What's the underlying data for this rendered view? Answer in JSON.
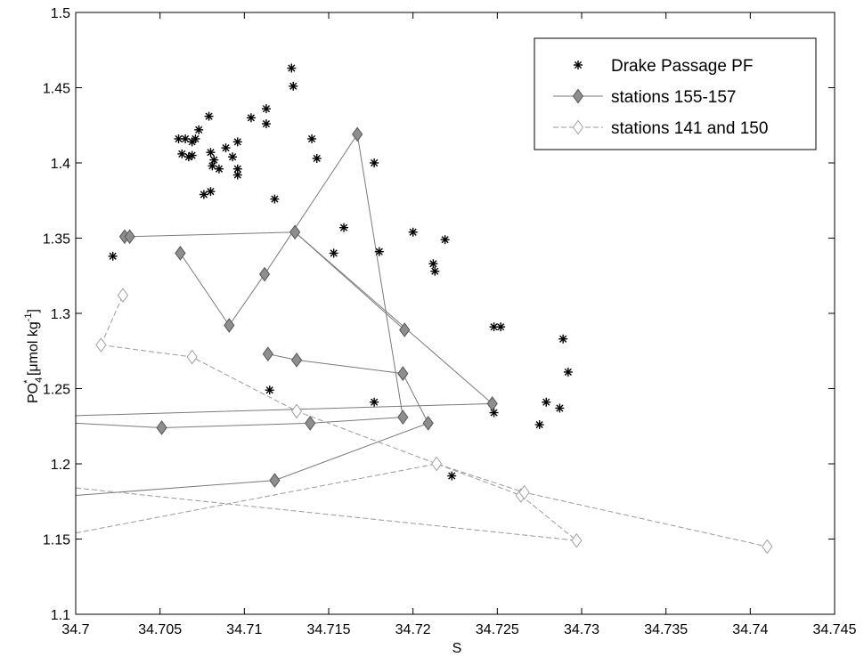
{
  "chart_data": {
    "type": "scatter",
    "xlabel": "S",
    "ylabel": {
      "base": "PO",
      "sub": "4",
      "sup": "*",
      "rest": " [μmol kg",
      "unit_sup": "-1",
      "tail": "]"
    },
    "xlim": [
      34.7,
      34.745
    ],
    "ylim": [
      1.1,
      1.5
    ],
    "xticks": [
      34.7,
      34.705,
      34.71,
      34.715,
      34.72,
      34.725,
      34.73,
      34.735,
      34.74,
      34.745
    ],
    "yticks": [
      1.1,
      1.15,
      1.2,
      1.25,
      1.3,
      1.35,
      1.4,
      1.45,
      1.5
    ],
    "xtick_labels": [
      "34.7",
      "34.705",
      "34.71",
      "34.715",
      "34.72",
      "34.725",
      "34.73",
      "34.735",
      "34.74",
      "34.745"
    ],
    "ytick_labels": [
      "1.1",
      "1.15",
      "1.2",
      "1.25",
      "1.3",
      "1.35",
      "1.4",
      "1.45",
      "1.5"
    ],
    "grid": false,
    "legend_position": "top-right",
    "series": [
      {
        "name": "Drake Passage PF",
        "marker": "star",
        "line": "none",
        "color": "#000000",
        "points": [
          [
            34.7022,
            1.338
          ],
          [
            34.7061,
            1.416
          ],
          [
            34.7065,
            1.416
          ],
          [
            34.7069,
            1.414
          ],
          [
            34.7071,
            1.416
          ],
          [
            34.7073,
            1.422
          ],
          [
            34.7063,
            1.406
          ],
          [
            34.7067,
            1.404
          ],
          [
            34.7069,
            1.405
          ],
          [
            34.7079,
            1.431
          ],
          [
            34.708,
            1.407
          ],
          [
            34.7082,
            1.402
          ],
          [
            34.7081,
            1.398
          ],
          [
            34.7085,
            1.396
          ],
          [
            34.7076,
            1.379
          ],
          [
            34.708,
            1.381
          ],
          [
            34.7089,
            1.41
          ],
          [
            34.7093,
            1.404
          ],
          [
            34.7096,
            1.414
          ],
          [
            34.7096,
            1.396
          ],
          [
            34.7096,
            1.392
          ],
          [
            34.7104,
            1.43
          ],
          [
            34.7113,
            1.436
          ],
          [
            34.7113,
            1.426
          ],
          [
            34.7118,
            1.376
          ],
          [
            34.7128,
            1.463
          ],
          [
            34.7129,
            1.451
          ],
          [
            34.714,
            1.416
          ],
          [
            34.7143,
            1.403
          ],
          [
            34.7153,
            1.34
          ],
          [
            34.7159,
            1.357
          ],
          [
            34.7177,
            1.4
          ],
          [
            34.718,
            1.341
          ],
          [
            34.72,
            1.354
          ],
          [
            34.7212,
            1.333
          ],
          [
            34.7213,
            1.328
          ],
          [
            34.7219,
            1.349
          ],
          [
            34.7115,
            1.249
          ],
          [
            34.7177,
            1.241
          ],
          [
            34.7223,
            1.192
          ],
          [
            34.7248,
            1.291
          ],
          [
            34.7252,
            1.291
          ],
          [
            34.7248,
            1.234
          ],
          [
            34.7275,
            1.226
          ],
          [
            34.7279,
            1.241
          ],
          [
            34.7287,
            1.237
          ],
          [
            34.7289,
            1.283
          ],
          [
            34.7292,
            1.261
          ]
        ]
      },
      {
        "name": "stations 155-157",
        "marker": "diamond-filled",
        "line": "solid",
        "color": "#7a7a7a",
        "paths": [
          [
            [
              34.7029,
              1.351
            ],
            [
              34.7032,
              1.351
            ],
            [
              34.713,
              1.354
            ],
            [
              34.7247,
              1.24
            ],
            [
              34.7,
              1.232
            ]
          ],
          [
            [
              34.7062,
              1.34
            ],
            [
              34.7091,
              1.292
            ],
            [
              34.7112,
              1.326
            ],
            [
              34.7167,
              1.419
            ],
            [
              34.7194,
              1.231
            ]
          ],
          [
            [
              34.7114,
              1.273
            ],
            [
              34.7131,
              1.269
            ],
            [
              34.7194,
              1.26
            ],
            [
              34.7209,
              1.227
            ],
            [
              34.7118,
              1.189
            ],
            [
              34.7,
              1.179
            ]
          ],
          [
            [
              34.7,
              1.227
            ],
            [
              34.7051,
              1.224
            ],
            [
              34.7139,
              1.227
            ],
            [
              34.7194,
              1.231
            ]
          ],
          [
            [
              34.713,
              1.354
            ],
            [
              34.7195,
              1.289
            ]
          ]
        ],
        "markers": [
          [
            34.7029,
            1.351
          ],
          [
            34.7032,
            1.351
          ],
          [
            34.713,
            1.354
          ],
          [
            34.7062,
            1.34
          ],
          [
            34.7091,
            1.292
          ],
          [
            34.7112,
            1.326
          ],
          [
            34.7167,
            1.419
          ],
          [
            34.7195,
            1.289
          ],
          [
            34.7114,
            1.273
          ],
          [
            34.7131,
            1.269
          ],
          [
            34.7194,
            1.26
          ],
          [
            34.7247,
            1.24
          ],
          [
            34.7051,
            1.224
          ],
          [
            34.7139,
            1.227
          ],
          [
            34.7194,
            1.231
          ],
          [
            34.7209,
            1.227
          ],
          [
            34.7118,
            1.189
          ]
        ]
      },
      {
        "name": "stations 141 and 150",
        "marker": "diamond-open",
        "line": "dashed",
        "color": "#9a9a9a",
        "paths": [
          [
            [
              34.7015,
              1.279
            ],
            [
              34.7028,
              1.312
            ]
          ],
          [
            [
              34.7015,
              1.279
            ],
            [
              34.7069,
              1.271
            ],
            [
              34.7131,
              1.235
            ],
            [
              34.7214,
              1.2
            ],
            [
              34.7266,
              1.181
            ],
            [
              34.741,
              1.145
            ]
          ],
          [
            [
              34.7,
              1.154
            ],
            [
              34.7214,
              1.2
            ],
            [
              34.7264,
              1.179
            ],
            [
              34.7297,
              1.149
            ]
          ],
          [
            [
              34.7,
              1.184
            ],
            [
              34.7297,
              1.149
            ]
          ]
        ],
        "markers": [
          [
            34.7015,
            1.279
          ],
          [
            34.7028,
            1.312
          ],
          [
            34.7069,
            1.271
          ],
          [
            34.7131,
            1.235
          ],
          [
            34.7214,
            1.2
          ],
          [
            34.7264,
            1.179
          ],
          [
            34.7266,
            1.181
          ],
          [
            34.7297,
            1.149
          ],
          [
            34.741,
            1.145
          ]
        ]
      }
    ]
  }
}
